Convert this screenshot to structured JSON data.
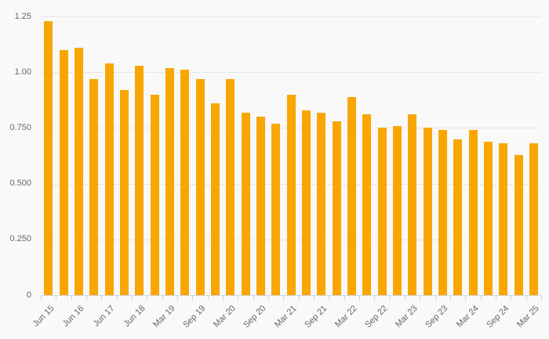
{
  "chart_data": {
    "type": "bar",
    "title": "",
    "xlabel": "",
    "ylabel": "",
    "ylim": [
      0,
      1.25
    ],
    "grid": true,
    "legend": false,
    "categories": [
      "Jun 15",
      "",
      "Jun 16",
      "",
      "Jun 17",
      "",
      "Jun 18",
      "",
      "Mar 19",
      "",
      "Sep 19",
      "",
      "Mar 20",
      "",
      "Sep 20",
      "",
      "Mar 21",
      "",
      "Sep 21",
      "",
      "Mar 22",
      "",
      "Sep 22",
      "",
      "Mar 23",
      "",
      "Sep 23",
      "",
      "Mar 24",
      "",
      "Sep 24",
      "",
      "Mar 25"
    ],
    "values": [
      1.23,
      1.1,
      1.11,
      0.97,
      1.04,
      0.92,
      1.03,
      0.9,
      1.02,
      1.01,
      0.97,
      0.86,
      0.97,
      0.82,
      0.8,
      0.77,
      0.9,
      0.83,
      0.82,
      0.78,
      0.89,
      0.81,
      0.75,
      0.76,
      0.81,
      0.75,
      0.74,
      0.7,
      0.74,
      0.69,
      0.68,
      0.63,
      0.68
    ],
    "y_ticks": [
      {
        "label": "1.25",
        "value": 1.25
      },
      {
        "label": "1.00",
        "value": 1.0
      },
      {
        "label": "0.750",
        "value": 0.75
      },
      {
        "label": "0.500",
        "value": 0.5
      },
      {
        "label": "0.250",
        "value": 0.25
      },
      {
        "label": "0",
        "value": 0
      }
    ],
    "x_label_step": 2
  },
  "colors": {
    "background": "#f9f9f9",
    "bar": "#f9a602",
    "gridline": "#e6e6e6",
    "axis_line": "#ccd6eb",
    "tick": "#ccd6eb",
    "label_text": "#666666"
  }
}
